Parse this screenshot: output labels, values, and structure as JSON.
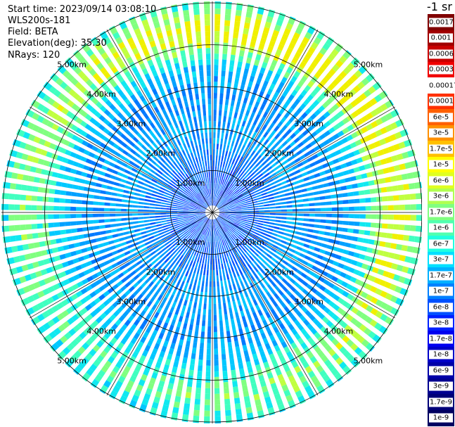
{
  "header": {
    "start_time": "Start time: 2023/09/14 03:08:10",
    "device": "WLS200s-181",
    "field": "Field: BETA",
    "elevation": "Elevation(deg): 35.30",
    "nrays": "NRays: 120"
  },
  "unit": "-1 sr",
  "ring_labels": [
    "1.00km",
    "2.00km",
    "3.00km",
    "4.00km",
    "5.00km"
  ],
  "colorbar": {
    "labels": [
      "0.0017",
      "0.001",
      "0.0006",
      "0.0003",
      "0.00017",
      "0.0001",
      "6e-5",
      "3e-5",
      "1.7e-5",
      "1e-5",
      "6e-6",
      "3e-6",
      "1.7e-6",
      "1e-6",
      "6e-7",
      "3e-7",
      "1.7e-7",
      "1e-7",
      "6e-8",
      "3e-8",
      "1.7e-8",
      "1e-8",
      "6e-9",
      "3e-9",
      "1.7e-9",
      "1e-9"
    ],
    "colors": [
      "#800000",
      "#a00000",
      "#c80000",
      "#f00000",
      "#ffffff",
      "#ff3000",
      "#ff6000",
      "#ff9000",
      "#ffc000",
      "#ffff00",
      "#e0ff20",
      "#b0ff50",
      "#80ff80",
      "#50ffb0",
      "#20ffe0",
      "#00e0ff",
      "#00b0ff",
      "#0080ff",
      "#0050ff",
      "#0020ff",
      "#0000f0",
      "#0000c8",
      "#0000a8",
      "#000090",
      "#000078",
      "#000060"
    ]
  }
}
